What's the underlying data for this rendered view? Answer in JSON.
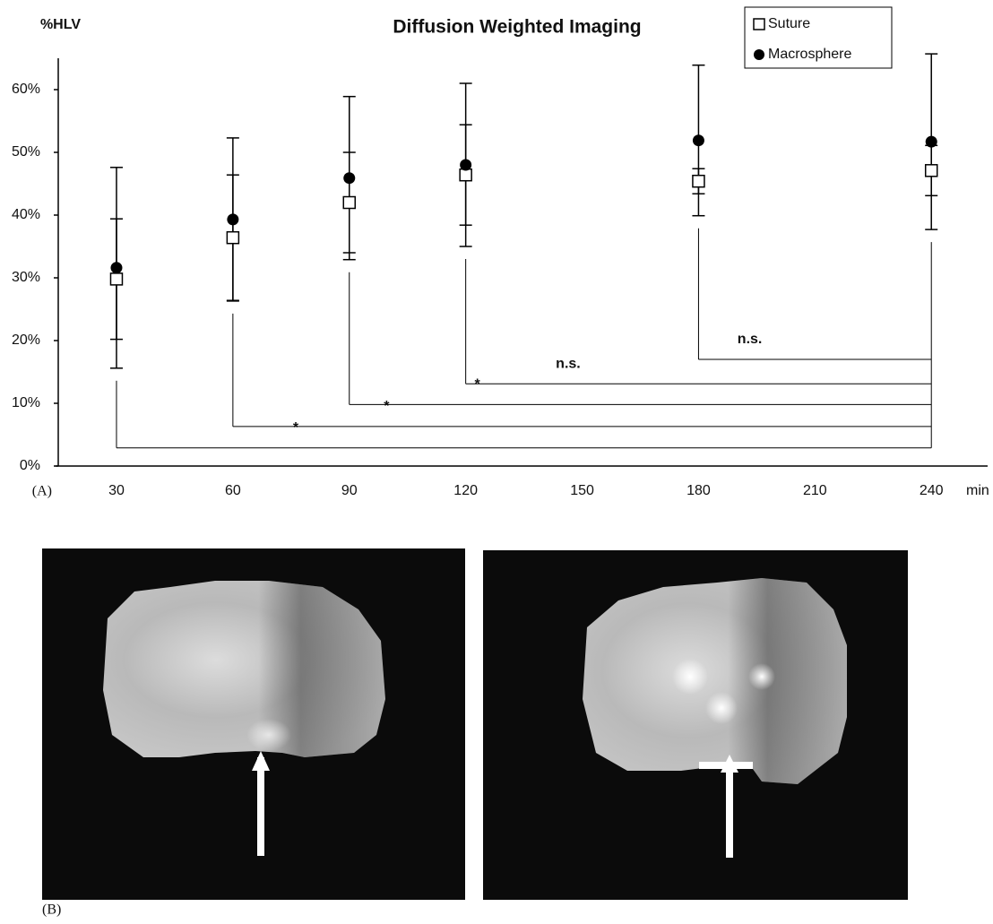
{
  "chart_data": {
    "type": "errorbar",
    "title": "Diffusion Weighted Imaging",
    "y_label": "%HLV",
    "x_label": "min",
    "panel_a": "(A)",
    "panel_b": "(B)",
    "x": [
      30,
      60,
      90,
      120,
      180,
      240
    ],
    "xlim": [
      14.3,
      254.5
    ],
    "xticks": [
      30,
      60,
      90,
      120,
      150,
      180,
      210,
      240
    ],
    "ylim": [
      0,
      65
    ],
    "yticks": [
      {
        "value": 0,
        "label": "0%"
      },
      {
        "value": 10,
        "label": "10%"
      },
      {
        "value": 20,
        "label": "20%"
      },
      {
        "value": 30,
        "label": "30%"
      },
      {
        "value": 40,
        "label": "40%"
      },
      {
        "value": 50,
        "label": "50%"
      },
      {
        "value": 60,
        "label": "60%"
      }
    ],
    "series": [
      {
        "name": "Suture",
        "color": "#000000",
        "marker": "square",
        "values": [
          29.8,
          36.4,
          42,
          46.4,
          45.4,
          47.1
        ],
        "errors": [
          9.6,
          10,
          8,
          8,
          2,
          4
        ]
      },
      {
        "name": "Macrosphere",
        "color": "#000000",
        "marker": "circle",
        "values": [
          31.6,
          39.3,
          45.9,
          48,
          51.9,
          51.7
        ],
        "errors": [
          16,
          13,
          13,
          13,
          12,
          14
        ]
      }
    ],
    "annotations": [
      {
        "text": "*",
        "from": 30,
        "to": 240,
        "y": 2.9
      },
      {
        "text": "*",
        "from": 60,
        "to": 240,
        "y": 6.3
      },
      {
        "text": "*",
        "from": 90,
        "to": 240,
        "y": 9.8
      },
      {
        "text": "n.s.",
        "from": 120,
        "to": 240,
        "y": 13.1
      },
      {
        "text": "n.s.",
        "from": 180,
        "to": 240,
        "y": 17
      }
    ]
  }
}
